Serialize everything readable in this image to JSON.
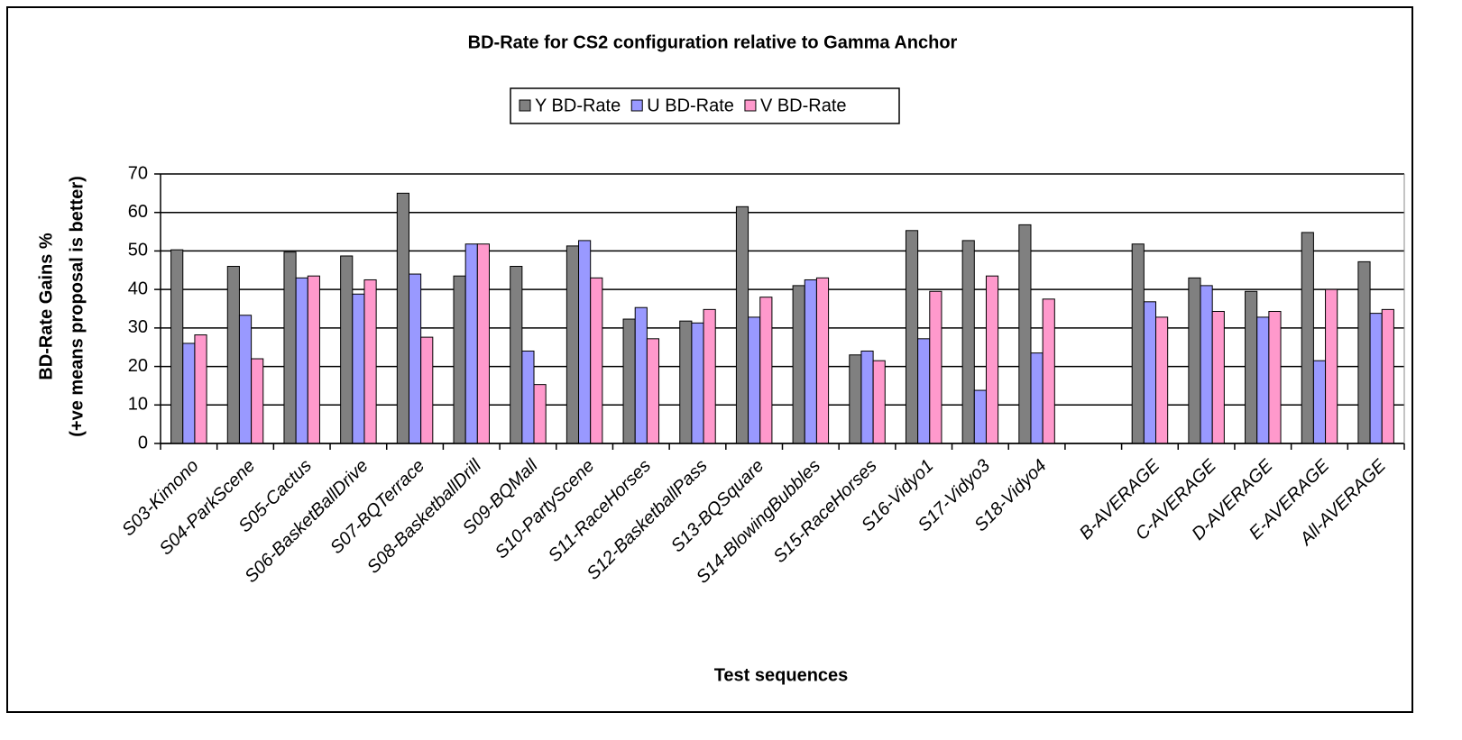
{
  "chart_data": {
    "type": "bar",
    "title": "BD-Rate for CS2 configuration relative to Gamma Anchor",
    "x_label": "Test sequences",
    "y_label": [
      "BD-Rate Gains %",
      "(+ve means proposal is better)"
    ],
    "categories": [
      "S03-Kimono",
      "S04-ParkScene",
      "S05-Cactus",
      "S06-BasketBallDrive",
      "S07-BQTerrace",
      "S08-BasketballDrill",
      "S09-BQMall",
      "S10-PartyScene",
      "S11-RaceHorses",
      "S12-BasketballPass",
      "S13-BQSquare",
      "S14-BlowingBubbles",
      "S15-RaceHorses",
      "S16-Vidyo1",
      "S17-Vidyo3",
      "S18-Vidyo4",
      null,
      "B-AVERAGE",
      "C-AVERAGE",
      "D-AVERAGE",
      "E-AVERAGE",
      "All-AVERAGE"
    ],
    "series": [
      {
        "name": "Y BD-Rate",
        "color": "#808080",
        "values": [
          50.3,
          46,
          49.7,
          48.7,
          65,
          43.5,
          46,
          51.3,
          32.3,
          31.8,
          61.5,
          41,
          23,
          55.3,
          52.7,
          56.8,
          null,
          51.8,
          43,
          39.5,
          54.8,
          47.2
        ]
      },
      {
        "name": "U BD-Rate",
        "color": "#9999ff",
        "values": [
          26,
          33.3,
          43,
          38.8,
          44,
          51.8,
          24,
          52.7,
          35.3,
          31.3,
          32.8,
          42.5,
          24,
          27.2,
          13.8,
          23.5,
          null,
          36.8,
          41,
          32.8,
          21.5,
          33.8
        ]
      },
      {
        "name": "V BD-Rate",
        "color": "#ff99cc",
        "values": [
          28.2,
          22,
          43.5,
          42.5,
          27.6,
          51.8,
          15.3,
          43,
          27.2,
          34.8,
          38,
          43,
          21.5,
          39.5,
          43.5,
          37.5,
          null,
          32.8,
          34.3,
          34.3,
          40,
          34.8
        ]
      }
    ],
    "ylim": [
      0,
      70
    ],
    "yticks": [
      0,
      10,
      20,
      30,
      40,
      50,
      60,
      70
    ],
    "grid": true,
    "legend": "top"
  }
}
